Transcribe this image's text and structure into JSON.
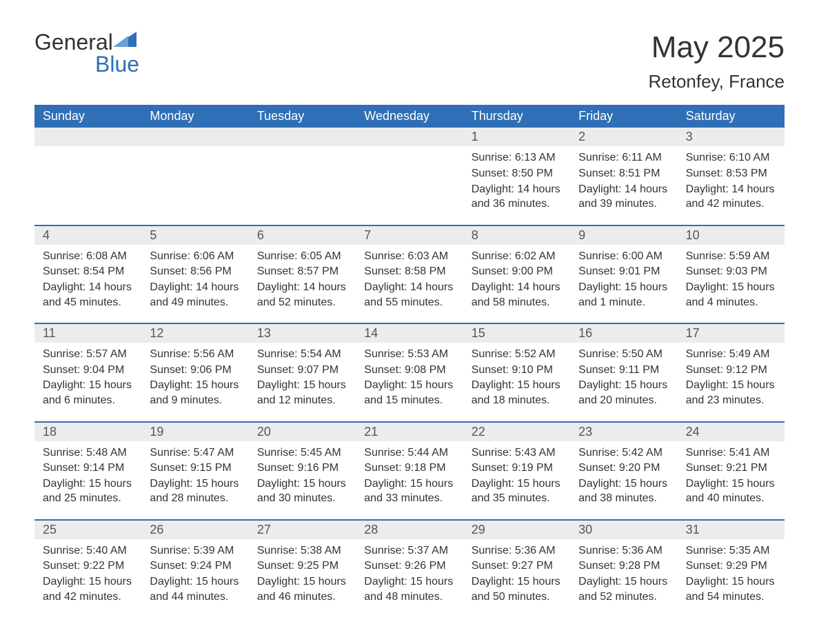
{
  "brand": {
    "name_a": "General",
    "name_b": "Blue"
  },
  "header": {
    "title": "May 2025",
    "location": "Retonfey, France"
  },
  "colors": {
    "accent": "#2e6fb5",
    "header_bg": "#2e6fb5",
    "daynum_bg": "#ececec",
    "text": "#333333",
    "white": "#ffffff"
  },
  "calendar": {
    "days_of_week": [
      "Sunday",
      "Monday",
      "Tuesday",
      "Wednesday",
      "Thursday",
      "Friday",
      "Saturday"
    ],
    "cell_font_size": 16,
    "dow_font_size": 18,
    "title_font_size": 44,
    "location_font_size": 26,
    "weeks": [
      [
        null,
        null,
        null,
        null,
        {
          "n": "1",
          "sunrise": "6:13 AM",
          "sunset": "8:50 PM",
          "dl": "14 hours and 36 minutes."
        },
        {
          "n": "2",
          "sunrise": "6:11 AM",
          "sunset": "8:51 PM",
          "dl": "14 hours and 39 minutes."
        },
        {
          "n": "3",
          "sunrise": "6:10 AM",
          "sunset": "8:53 PM",
          "dl": "14 hours and 42 minutes."
        }
      ],
      [
        {
          "n": "4",
          "sunrise": "6:08 AM",
          "sunset": "8:54 PM",
          "dl": "14 hours and 45 minutes."
        },
        {
          "n": "5",
          "sunrise": "6:06 AM",
          "sunset": "8:56 PM",
          "dl": "14 hours and 49 minutes."
        },
        {
          "n": "6",
          "sunrise": "6:05 AM",
          "sunset": "8:57 PM",
          "dl": "14 hours and 52 minutes."
        },
        {
          "n": "7",
          "sunrise": "6:03 AM",
          "sunset": "8:58 PM",
          "dl": "14 hours and 55 minutes."
        },
        {
          "n": "8",
          "sunrise": "6:02 AM",
          "sunset": "9:00 PM",
          "dl": "14 hours and 58 minutes."
        },
        {
          "n": "9",
          "sunrise": "6:00 AM",
          "sunset": "9:01 PM",
          "dl": "15 hours and 1 minute."
        },
        {
          "n": "10",
          "sunrise": "5:59 AM",
          "sunset": "9:03 PM",
          "dl": "15 hours and 4 minutes."
        }
      ],
      [
        {
          "n": "11",
          "sunrise": "5:57 AM",
          "sunset": "9:04 PM",
          "dl": "15 hours and 6 minutes."
        },
        {
          "n": "12",
          "sunrise": "5:56 AM",
          "sunset": "9:06 PM",
          "dl": "15 hours and 9 minutes."
        },
        {
          "n": "13",
          "sunrise": "5:54 AM",
          "sunset": "9:07 PM",
          "dl": "15 hours and 12 minutes."
        },
        {
          "n": "14",
          "sunrise": "5:53 AM",
          "sunset": "9:08 PM",
          "dl": "15 hours and 15 minutes."
        },
        {
          "n": "15",
          "sunrise": "5:52 AM",
          "sunset": "9:10 PM",
          "dl": "15 hours and 18 minutes."
        },
        {
          "n": "16",
          "sunrise": "5:50 AM",
          "sunset": "9:11 PM",
          "dl": "15 hours and 20 minutes."
        },
        {
          "n": "17",
          "sunrise": "5:49 AM",
          "sunset": "9:12 PM",
          "dl": "15 hours and 23 minutes."
        }
      ],
      [
        {
          "n": "18",
          "sunrise": "5:48 AM",
          "sunset": "9:14 PM",
          "dl": "15 hours and 25 minutes."
        },
        {
          "n": "19",
          "sunrise": "5:47 AM",
          "sunset": "9:15 PM",
          "dl": "15 hours and 28 minutes."
        },
        {
          "n": "20",
          "sunrise": "5:45 AM",
          "sunset": "9:16 PM",
          "dl": "15 hours and 30 minutes."
        },
        {
          "n": "21",
          "sunrise": "5:44 AM",
          "sunset": "9:18 PM",
          "dl": "15 hours and 33 minutes."
        },
        {
          "n": "22",
          "sunrise": "5:43 AM",
          "sunset": "9:19 PM",
          "dl": "15 hours and 35 minutes."
        },
        {
          "n": "23",
          "sunrise": "5:42 AM",
          "sunset": "9:20 PM",
          "dl": "15 hours and 38 minutes."
        },
        {
          "n": "24",
          "sunrise": "5:41 AM",
          "sunset": "9:21 PM",
          "dl": "15 hours and 40 minutes."
        }
      ],
      [
        {
          "n": "25",
          "sunrise": "5:40 AM",
          "sunset": "9:22 PM",
          "dl": "15 hours and 42 minutes."
        },
        {
          "n": "26",
          "sunrise": "5:39 AM",
          "sunset": "9:24 PM",
          "dl": "15 hours and 44 minutes."
        },
        {
          "n": "27",
          "sunrise": "5:38 AM",
          "sunset": "9:25 PM",
          "dl": "15 hours and 46 minutes."
        },
        {
          "n": "28",
          "sunrise": "5:37 AM",
          "sunset": "9:26 PM",
          "dl": "15 hours and 48 minutes."
        },
        {
          "n": "29",
          "sunrise": "5:36 AM",
          "sunset": "9:27 PM",
          "dl": "15 hours and 50 minutes."
        },
        {
          "n": "30",
          "sunrise": "5:36 AM",
          "sunset": "9:28 PM",
          "dl": "15 hours and 52 minutes."
        },
        {
          "n": "31",
          "sunrise": "5:35 AM",
          "sunset": "9:29 PM",
          "dl": "15 hours and 54 minutes."
        }
      ]
    ],
    "labels": {
      "sunrise": "Sunrise:",
      "sunset": "Sunset:",
      "daylight": "Daylight:"
    }
  }
}
